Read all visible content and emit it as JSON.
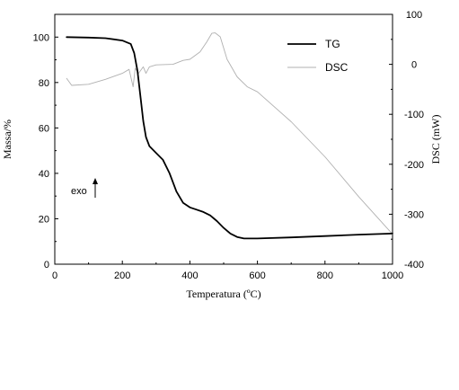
{
  "chart_data": {
    "type": "line",
    "xlabel": "Temperatura (ºC)",
    "ylabel": "Massa/%",
    "y2label": "DSC (mW)",
    "xlim": [
      0,
      1000
    ],
    "ylim": [
      0,
      110
    ],
    "y2lim": [
      -400,
      100
    ],
    "x_ticks": [
      0,
      200,
      400,
      600,
      800,
      1000
    ],
    "y_ticks": [
      0,
      20,
      40,
      60,
      80,
      100
    ],
    "y2_ticks": [
      -400,
      -300,
      -200,
      -100,
      0,
      100
    ],
    "grid": false,
    "legend_position": "top-right",
    "annotation": "exo",
    "series": [
      {
        "name": "TG",
        "axis": "left",
        "color": "#000000",
        "x": [
          35,
          100,
          150,
          200,
          225,
          235,
          245,
          255,
          262,
          270,
          280,
          300,
          320,
          340,
          360,
          380,
          400,
          420,
          440,
          460,
          480,
          500,
          520,
          540,
          560,
          600,
          700,
          800,
          900,
          1000
        ],
        "y": [
          100,
          99.8,
          99.5,
          98.5,
          97,
          93,
          85,
          72,
          63,
          56,
          52,
          49,
          46,
          40,
          32,
          27,
          25,
          24,
          23,
          21.5,
          19,
          16,
          13.5,
          12,
          11.3,
          11.3,
          11.8,
          12.4,
          13,
          13.5
        ]
      },
      {
        "name": "DSC",
        "axis": "right",
        "color": "#b0b0b0",
        "x": [
          35,
          50,
          100,
          150,
          200,
          220,
          232,
          238,
          248,
          262,
          270,
          280,
          300,
          350,
          380,
          400,
          430,
          450,
          465,
          475,
          490,
          510,
          540,
          570,
          600,
          700,
          800,
          900,
          1000
        ],
        "y": [
          -28,
          -42,
          -40,
          -30,
          -18,
          -10,
          -45,
          -8,
          -18,
          -5,
          -18,
          -5,
          -1,
          0,
          8,
          10,
          25,
          45,
          62,
          63,
          55,
          10,
          -25,
          -45,
          -55,
          -115,
          -185,
          -265,
          -340
        ]
      }
    ]
  }
}
